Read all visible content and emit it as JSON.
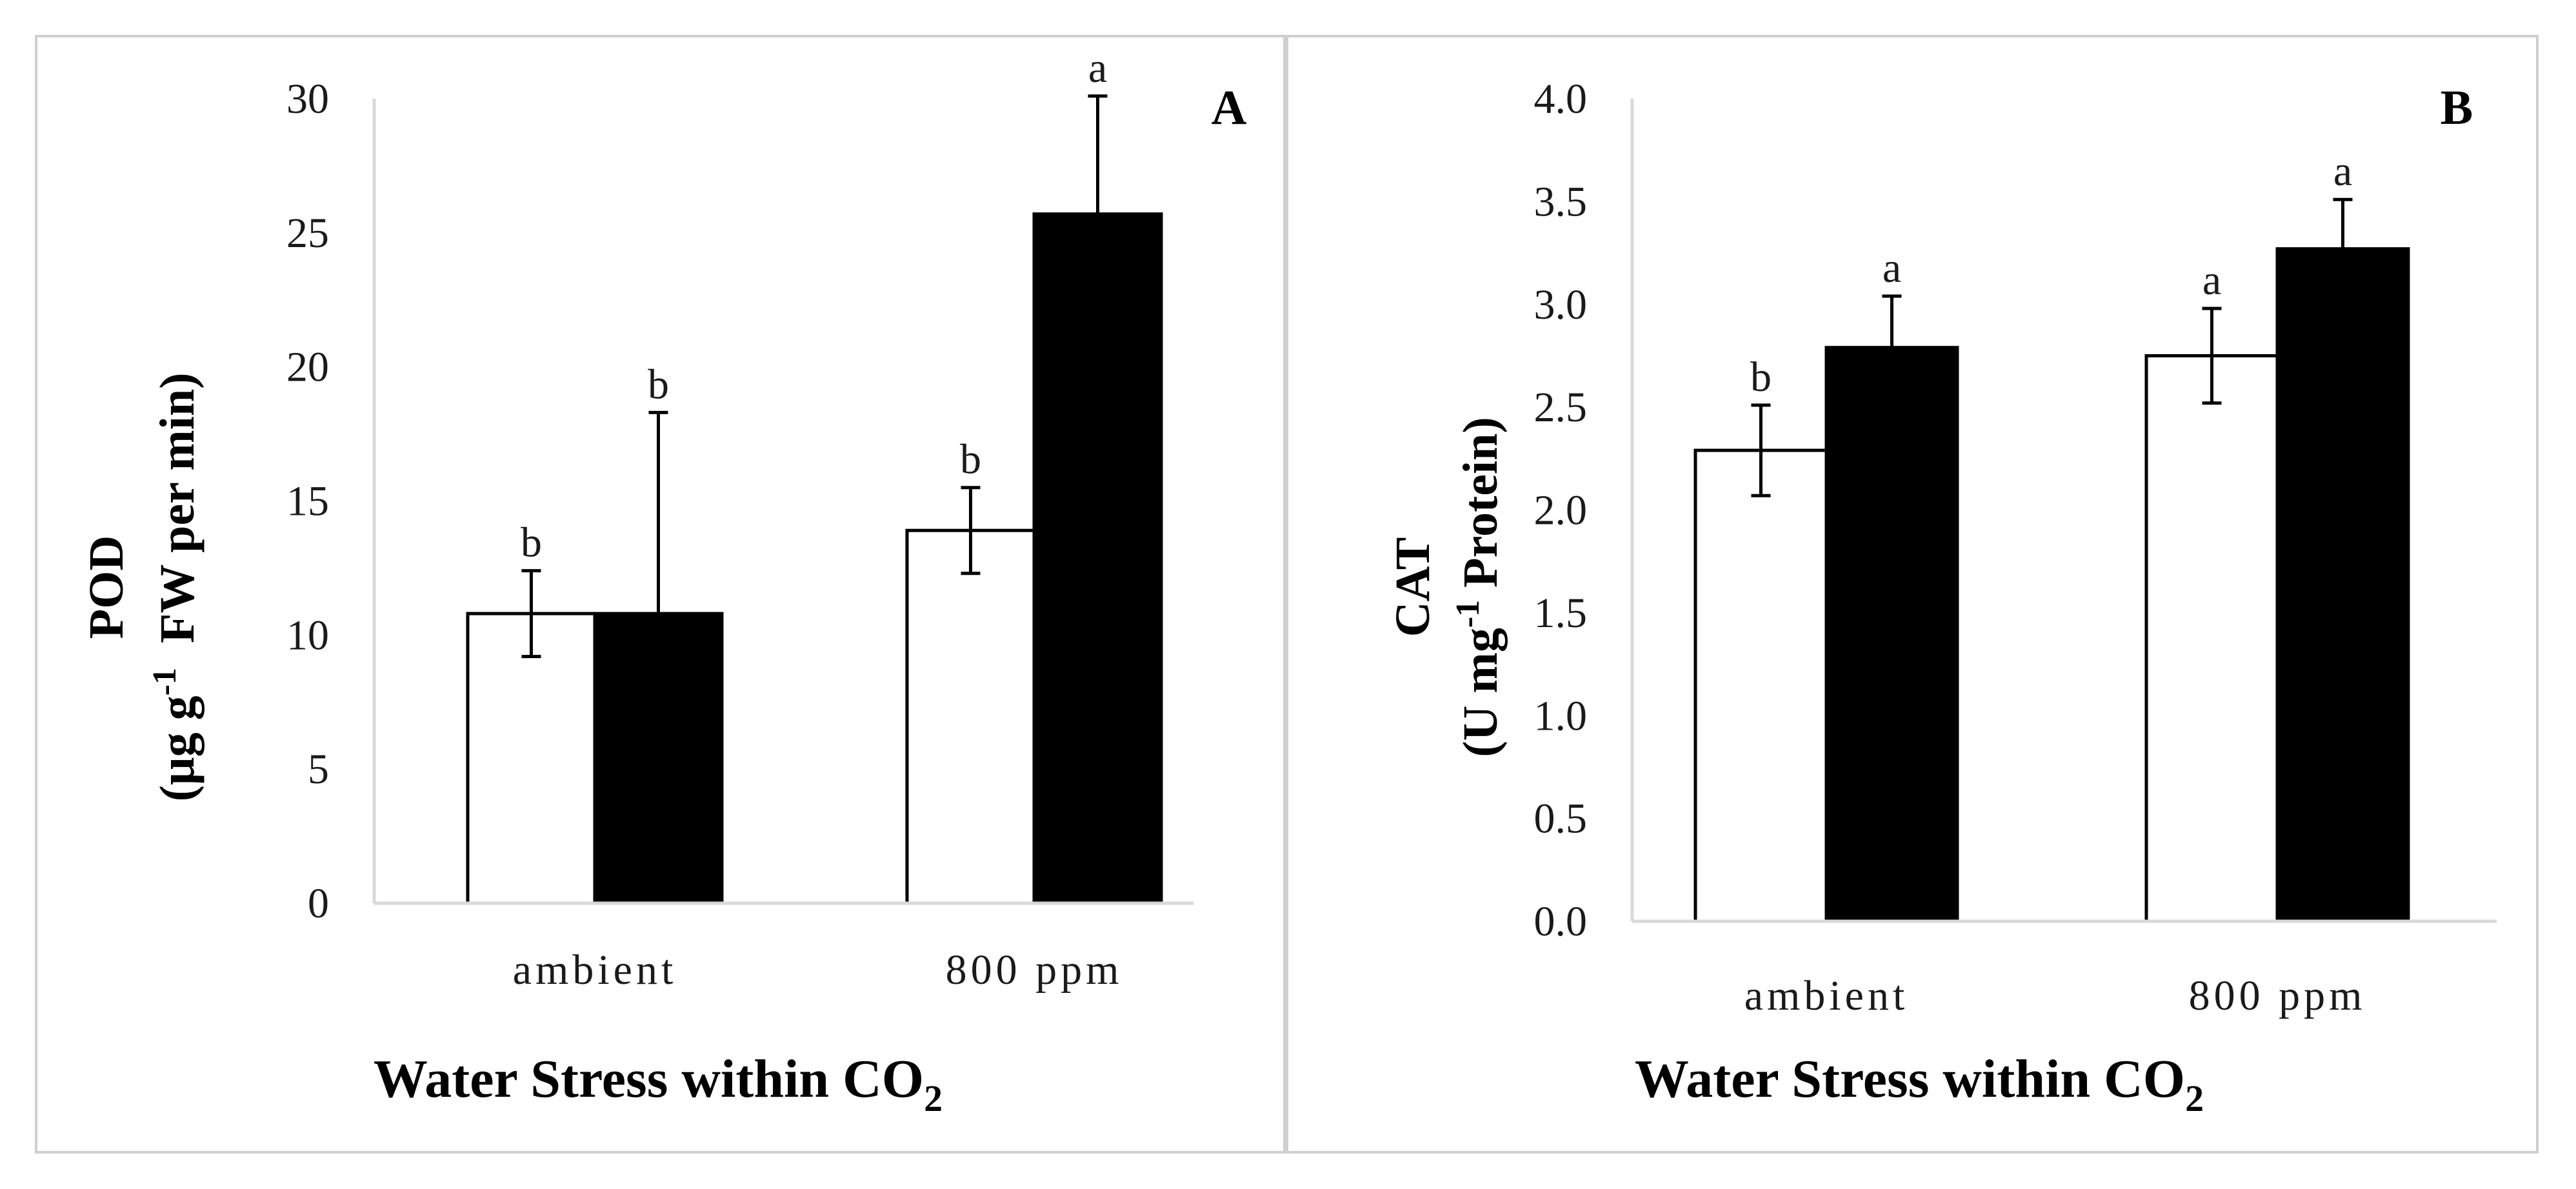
{
  "colors": {
    "control": "#ffffff",
    "stress": "#000000",
    "axis": "#d9d9d9",
    "frame": "#cfcfcf"
  },
  "chart_data": [
    {
      "type": "bar",
      "panel": "A",
      "ylabel_line1": "POD",
      "ylabel_line2_pre": "(µg g",
      "ylabel_line2_sup": "-1",
      "ylabel_line2_post": "  FW per min)",
      "xlabel_main": "Water Stress within CO",
      "xlabel_sub": "2",
      "categories": [
        "ambient",
        "800 ppm"
      ],
      "ylim": [
        0,
        30
      ],
      "yticks": [
        "0",
        "5",
        "10",
        "15",
        "20",
        "25",
        "30"
      ],
      "ytick_values": [
        0,
        5,
        10,
        15,
        20,
        25,
        30
      ],
      "series": [
        {
          "fill": "control",
          "values": [
            10.8,
            13.9
          ],
          "errors": [
            1.6,
            1.6
          ],
          "letters": [
            "b",
            "b"
          ]
        },
        {
          "fill": "stress",
          "values": [
            10.8,
            25.7
          ],
          "errors": [
            7.5,
            4.4
          ],
          "letters": [
            "b",
            "a"
          ]
        }
      ]
    },
    {
      "type": "bar",
      "panel": "B",
      "ylabel_line1": "CAT",
      "ylabel_line2_pre": "(U mg",
      "ylabel_line2_sup": "-1",
      "ylabel_line2_post": " Protein)",
      "xlabel_main": "Water Stress within CO",
      "xlabel_sub": "2",
      "categories": [
        "ambient",
        "800 ppm"
      ],
      "ylim": [
        0,
        4.0
      ],
      "yticks": [
        "0.0",
        "0.5",
        "1.0",
        "1.5",
        "2.0",
        "2.5",
        "3.0",
        "3.5",
        "4.0"
      ],
      "ytick_values": [
        0,
        0.5,
        1.0,
        1.5,
        2.0,
        2.5,
        3.0,
        3.5,
        4.0
      ],
      "series": [
        {
          "fill": "control",
          "values": [
            2.29,
            2.75
          ],
          "errors": [
            0.22,
            0.23
          ],
          "letters": [
            "b",
            "a"
          ]
        },
        {
          "fill": "stress",
          "values": [
            2.79,
            3.27
          ],
          "errors": [
            0.25,
            0.24
          ],
          "letters": [
            "a",
            "a"
          ]
        }
      ]
    }
  ]
}
